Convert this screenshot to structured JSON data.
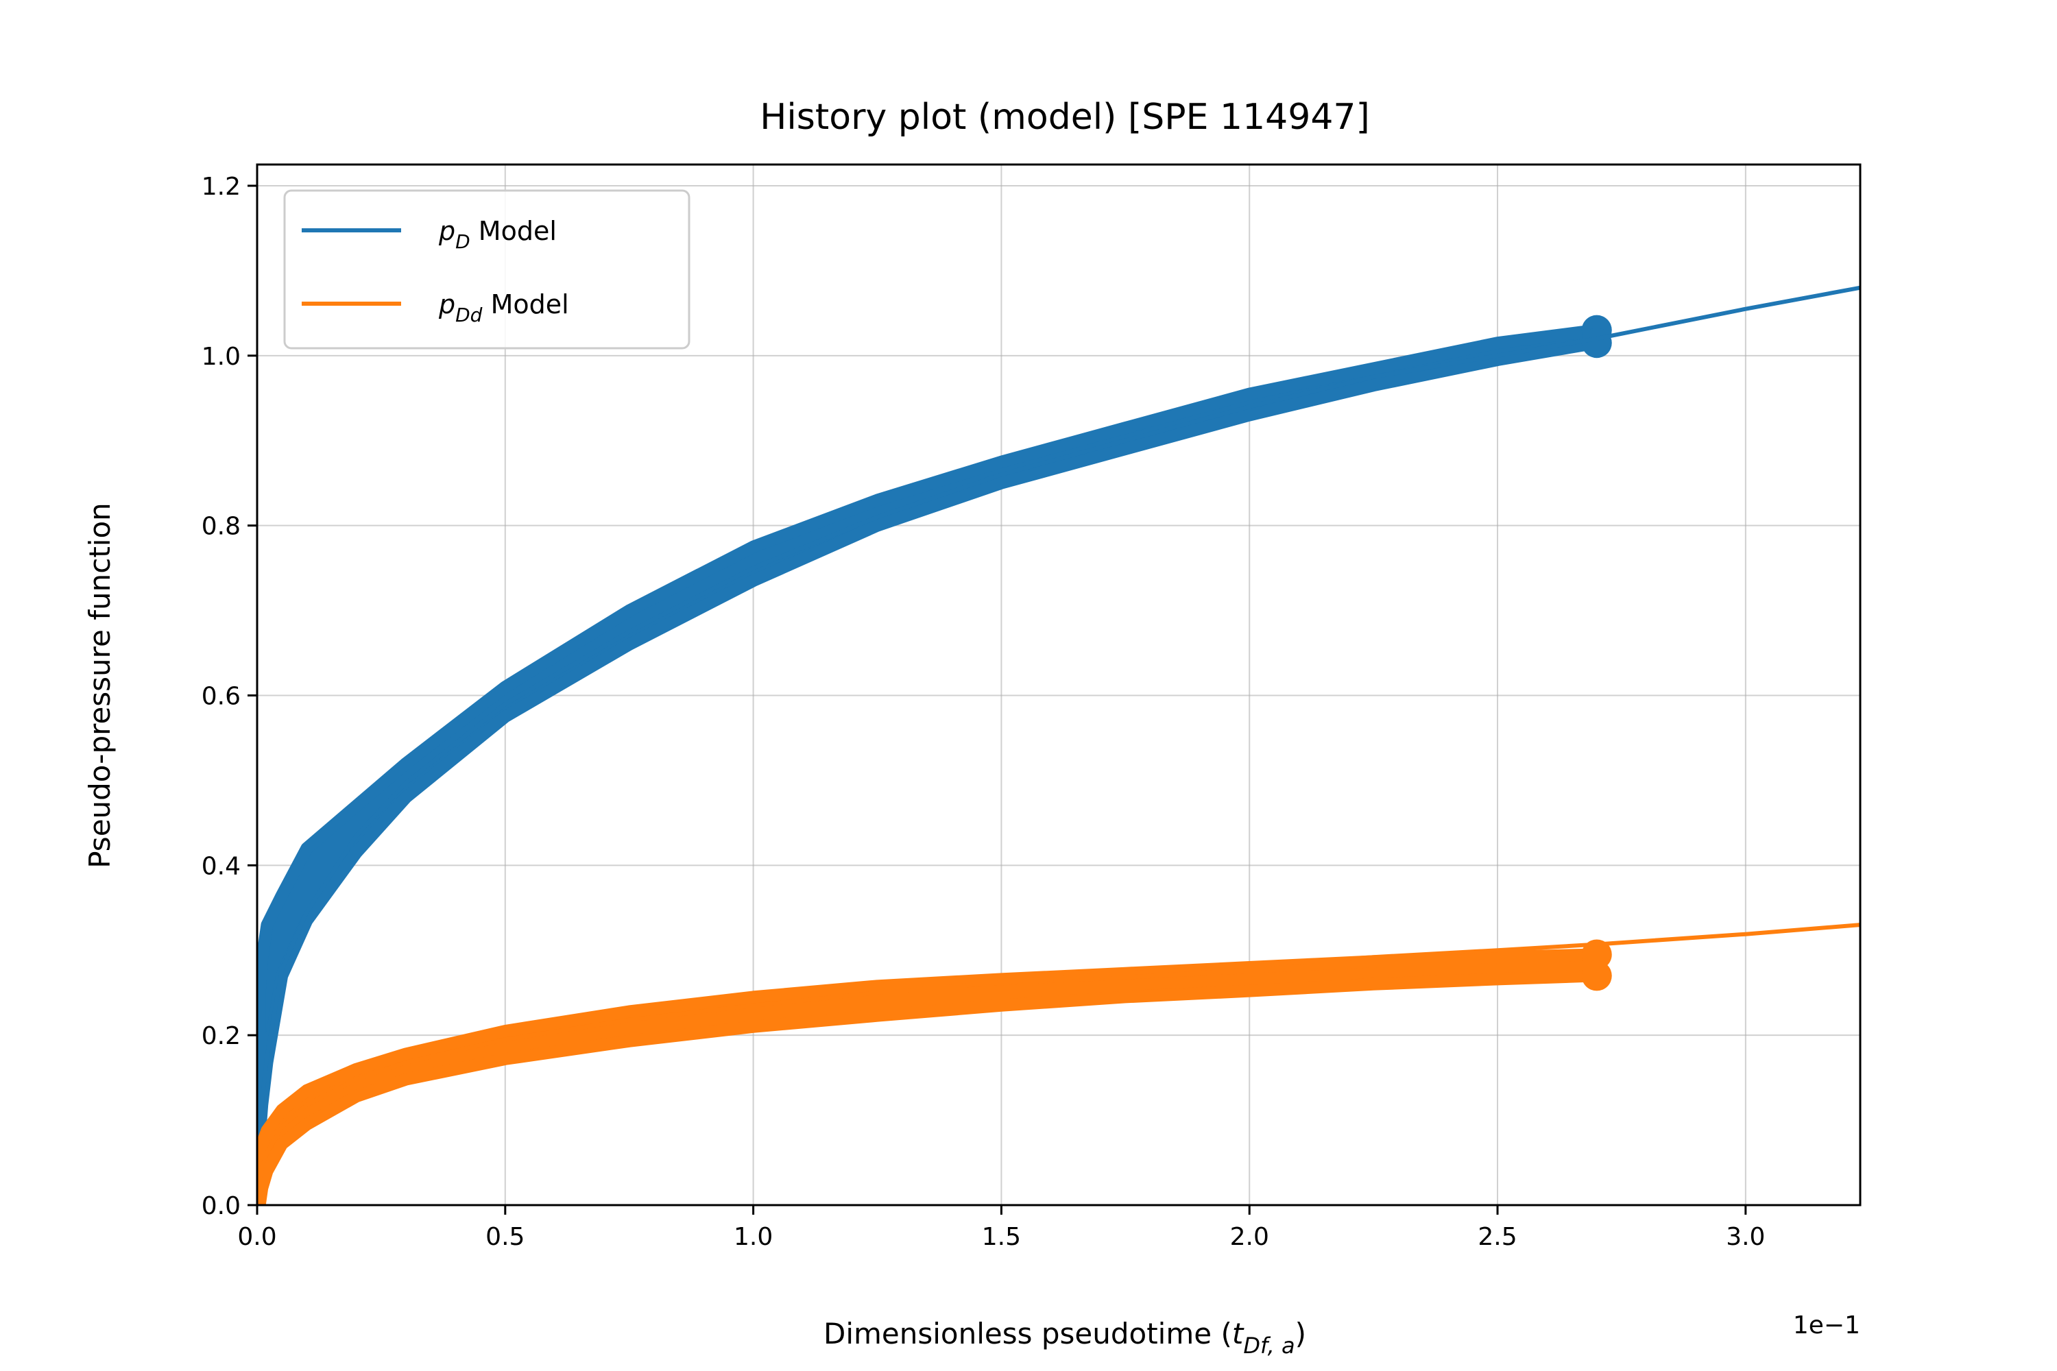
{
  "chart_data": {
    "type": "line",
    "title": "History plot (model) [SPE 114947]",
    "xlabel": "Dimensionless pseudotime",
    "xlabel_symbol": "t",
    "xlabel_subscript": "Df, a",
    "ylabel": "Pseudo-pressure function",
    "x_offset_label": "1e−1",
    "xlim": [
      0,
      0.3231
    ],
    "ylim": [
      0,
      1.225
    ],
    "x_ticks": [
      0,
      0.05,
      0.1,
      0.15,
      0.2,
      0.25,
      0.3
    ],
    "x_tick_labels": [
      "0.0",
      "0.5",
      "1.0",
      "1.5",
      "2.0",
      "2.5",
      "3.0"
    ],
    "y_ticks": [
      0,
      0.2,
      0.4,
      0.6,
      0.8,
      1.0,
      1.2
    ],
    "y_tick_labels": [
      "0.0",
      "0.2",
      "0.4",
      "0.6",
      "0.8",
      "1.0",
      "1.2"
    ],
    "grid": true,
    "legend_position": "upper-left",
    "series": [
      {
        "name": "Model",
        "symbol": "p",
        "subscript": "D",
        "color": "#1f77b4",
        "model_line": {
          "x": [
            0.0005,
            0.001,
            0.002,
            0.005,
            0.01,
            0.02,
            0.03,
            0.05,
            0.075,
            0.1,
            0.125,
            0.15,
            0.175,
            0.2,
            0.225,
            0.25,
            0.27,
            0.3,
            0.3231
          ],
          "y": [
            0.088,
            0.124,
            0.176,
            0.278,
            0.345,
            0.435,
            0.497,
            0.59,
            0.675,
            0.75,
            0.81,
            0.86,
            0.9,
            0.94,
            0.975,
            1.0,
            1.02,
            1.055,
            1.08
          ]
        },
        "data_band": {
          "x": [
            0.0005,
            0.001,
            0.002,
            0.005,
            0.01,
            0.02,
            0.03,
            0.05,
            0.075,
            0.1,
            0.125,
            0.15,
            0.175,
            0.2,
            0.225,
            0.25,
            0.27
          ],
          "y_low": [
            0.08,
            0.118,
            0.168,
            0.27,
            0.335,
            0.415,
            0.48,
            0.575,
            0.66,
            0.735,
            0.8,
            0.85,
            0.89,
            0.93,
            0.965,
            0.995,
            1.015
          ],
          "y_high": [
            0.25,
            0.29,
            0.33,
            0.365,
            0.42,
            0.47,
            0.52,
            0.61,
            0.7,
            0.775,
            0.83,
            0.875,
            0.915,
            0.955,
            0.985,
            1.015,
            1.03
          ]
        }
      },
      {
        "name": "Model",
        "symbol": "p",
        "subscript": "Dd",
        "color": "#ff7f0e",
        "model_line": {
          "x": [
            0.0005,
            0.001,
            0.002,
            0.005,
            0.01,
            0.02,
            0.03,
            0.05,
            0.075,
            0.1,
            0.125,
            0.15,
            0.175,
            0.2,
            0.225,
            0.25,
            0.27,
            0.3,
            0.3231
          ],
          "y": [
            0.03,
            0.045,
            0.062,
            0.092,
            0.118,
            0.148,
            0.168,
            0.195,
            0.218,
            0.235,
            0.25,
            0.262,
            0.273,
            0.282,
            0.292,
            0.3,
            0.307,
            0.319,
            0.33
          ]
        },
        "data_band": {
          "x": [
            0.0005,
            0.001,
            0.002,
            0.005,
            0.01,
            0.02,
            0.03,
            0.05,
            0.075,
            0.1,
            0.125,
            0.15,
            0.175,
            0.2,
            0.225,
            0.25,
            0.27
          ],
          "y_low": [
            0.0,
            0.02,
            0.04,
            0.072,
            0.095,
            0.128,
            0.148,
            0.172,
            0.193,
            0.21,
            0.223,
            0.235,
            0.245,
            0.252,
            0.26,
            0.266,
            0.27
          ],
          "y_high": [
            0.06,
            0.072,
            0.088,
            0.112,
            0.135,
            0.16,
            0.178,
            0.205,
            0.228,
            0.245,
            0.258,
            0.266,
            0.273,
            0.28,
            0.287,
            0.292,
            0.295
          ]
        }
      }
    ]
  }
}
